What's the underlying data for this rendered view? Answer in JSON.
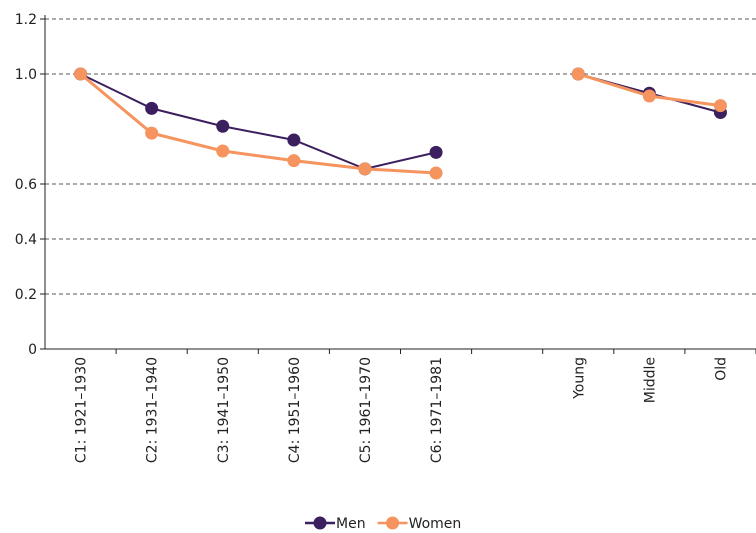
{
  "chart_data": {
    "type": "line",
    "categories": [
      "C1: 1921–1930",
      "C2: 1931–1940",
      "C3: 1941–1950",
      "C4: 1951–1960",
      "C5: 1961–1970",
      "C6: 1971–1981",
      null,
      "Young",
      "Middle",
      "Old"
    ],
    "series": [
      {
        "name": "Men",
        "color": "#3b1f5e",
        "values": [
          1.0,
          0.875,
          0.81,
          0.76,
          0.655,
          0.715,
          null,
          1.0,
          0.93,
          0.86
        ]
      },
      {
        "name": "Women",
        "color": "#f5945e",
        "values": [
          1.0,
          0.785,
          0.72,
          0.685,
          0.655,
          0.64,
          null,
          1.0,
          0.92,
          0.885
        ]
      }
    ],
    "ylim": [
      0,
      1.2
    ],
    "yticks": [
      0,
      0.2,
      0.4,
      0.6,
      {
        "value": 1,
        "label": "1.0"
      },
      1.2
    ],
    "grid": true
  }
}
